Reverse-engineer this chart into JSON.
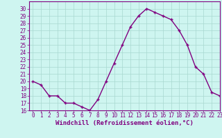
{
  "x": [
    0,
    1,
    2,
    3,
    4,
    5,
    6,
    7,
    8,
    9,
    10,
    11,
    12,
    13,
    14,
    15,
    16,
    17,
    18,
    19,
    20,
    21,
    22,
    23
  ],
  "y": [
    20,
    19.5,
    18,
    18,
    17,
    17,
    16.5,
    16,
    17.5,
    20,
    22.5,
    25,
    27.5,
    29,
    30,
    29.5,
    29,
    28.5,
    27,
    25,
    22,
    21,
    18.5,
    18
  ],
  "line_color": "#800080",
  "marker": "+",
  "marker_color": "#800080",
  "bg_color": "#cef5f0",
  "grid_color": "#a8d8d0",
  "xlabel": "Windchill (Refroidissement éolien,°C)",
  "xlabel_color": "#800080",
  "tick_color": "#800080",
  "spine_color": "#800080",
  "ylim": [
    16,
    31
  ],
  "xlim": [
    -0.5,
    23
  ],
  "yticks": [
    16,
    17,
    18,
    19,
    20,
    21,
    22,
    23,
    24,
    25,
    26,
    27,
    28,
    29,
    30
  ],
  "xticks": [
    0,
    1,
    2,
    3,
    4,
    5,
    6,
    7,
    8,
    9,
    10,
    11,
    12,
    13,
    14,
    15,
    16,
    17,
    18,
    19,
    20,
    21,
    22,
    23
  ],
  "tick_fontsize": 5.5,
  "xlabel_fontsize": 6.5,
  "line_width": 1.0,
  "marker_size": 3
}
